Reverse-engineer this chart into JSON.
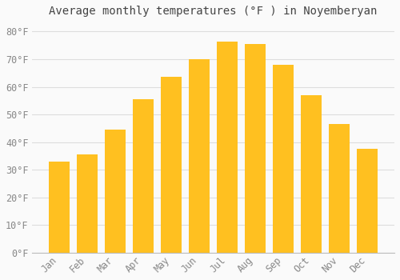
{
  "title": "Average monthly temperatures (°F ) in Noyemberyan",
  "months": [
    "Jan",
    "Feb",
    "Mar",
    "Apr",
    "May",
    "Jun",
    "Jul",
    "Aug",
    "Sep",
    "Oct",
    "Nov",
    "Dec"
  ],
  "values": [
    33,
    35.5,
    44.5,
    55.5,
    63.5,
    70,
    76.5,
    75.5,
    68,
    57,
    46.5,
    37.5
  ],
  "bar_color": "#FFC020",
  "bar_edge_color": "#FFC020",
  "background_color": "#FAFAFA",
  "grid_color": "#DDDDDD",
  "ylim": [
    0,
    83
  ],
  "yticks": [
    0,
    10,
    20,
    30,
    40,
    50,
    60,
    70,
    80
  ],
  "ylabel_suffix": "°F",
  "title_fontsize": 10,
  "tick_fontsize": 8.5,
  "font_family": "monospace",
  "tick_color": "#888888",
  "title_color": "#444444"
}
